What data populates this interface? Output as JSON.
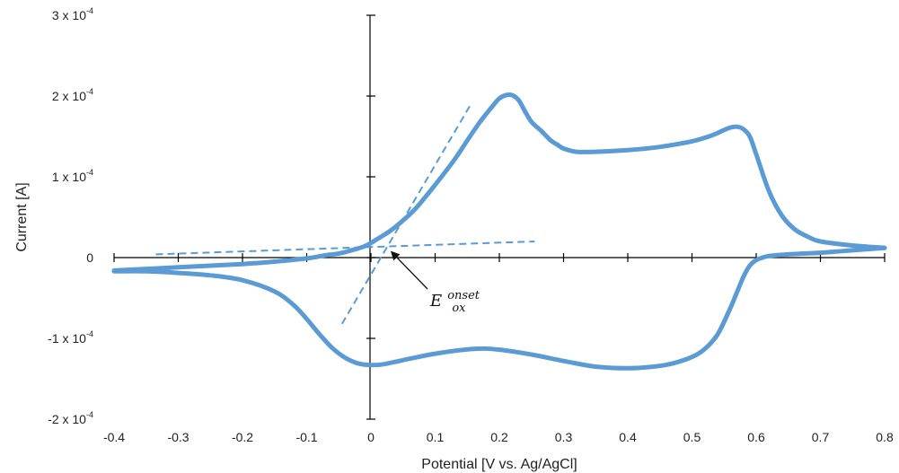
{
  "chart_data": {
    "type": "line",
    "xlabel": "Potential [V vs. Ag/AgCl]",
    "ylabel": "Current [A]",
    "xlim": [
      -0.4,
      0.8
    ],
    "ylim": [
      -0.0002,
      0.0003
    ],
    "x_ticks": [
      "-0.4",
      "-0.3",
      "-0.2",
      "-0.1",
      "0",
      "0.1",
      "0.2",
      "0.3",
      "0.4",
      "0.5",
      "0.6",
      "0.7",
      "0.8"
    ],
    "y_ticks": [
      {
        "value": 0.0003,
        "mantissa": "3 x 10",
        "exp": "-4"
      },
      {
        "value": 0.0002,
        "mantissa": "2 x 10",
        "exp": "-4"
      },
      {
        "value": 0.0001,
        "mantissa": "1 x 10",
        "exp": "-4"
      },
      {
        "value": 0,
        "mantissa": "0",
        "exp": ""
      },
      {
        "value": -0.0001,
        "mantissa": "-1 x 10",
        "exp": "-4"
      },
      {
        "value": -0.0002,
        "mantissa": "-2 x 10",
        "exp": "-4"
      }
    ],
    "grid": false,
    "line_color": "#5b9bd5",
    "series": [
      {
        "x": [
          -0.4,
          -0.35,
          -0.3,
          -0.25,
          -0.2,
          -0.15,
          -0.1,
          -0.07,
          -0.05,
          -0.03,
          -0.01,
          0.0,
          0.01,
          0.03,
          0.05,
          0.07,
          0.1,
          0.13,
          0.15,
          0.17,
          0.19,
          0.2,
          0.21,
          0.22,
          0.23,
          0.24,
          0.25,
          0.265,
          0.28,
          0.29,
          0.3,
          0.32,
          0.35,
          0.4,
          0.45,
          0.5,
          0.53,
          0.55,
          0.56,
          0.57,
          0.58,
          0.59,
          0.6,
          0.62,
          0.64,
          0.66,
          0.68,
          0.7,
          0.75,
          0.8
        ],
        "y": [
          -1.6e-05,
          -1.4e-05,
          -1.2e-05,
          -1e-05,
          -8e-06,
          -5e-06,
          -1e-06,
          3e-06,
          5e-06,
          9e-06,
          1.4e-05,
          1.8e-05,
          2.3e-05,
          3.3e-05,
          4.6e-05,
          6.1e-05,
          9e-05,
          0.000121,
          0.000145,
          0.000168,
          0.000188,
          0.000197,
          0.000201,
          0.000201,
          0.000195,
          0.000181,
          0.000168,
          0.000157,
          0.000145,
          0.00014,
          0.000135,
          0.000131,
          0.000131,
          0.000133,
          0.000137,
          0.000144,
          0.000151,
          0.000158,
          0.000161,
          0.000162,
          0.000159,
          0.00015,
          0.000128,
          8.2e-05,
          5.2e-05,
          3.5e-05,
          2.6e-05,
          2e-05,
          1.5e-05,
          1.2e-05
        ]
      },
      {
        "x": [
          0.8,
          0.75,
          0.7,
          0.65,
          0.62,
          0.61,
          0.6,
          0.59,
          0.58,
          0.56,
          0.54,
          0.52,
          0.5,
          0.47,
          0.44,
          0.4,
          0.35,
          0.3,
          0.25,
          0.2,
          0.16,
          0.1,
          0.05,
          0.02,
          0.0,
          -0.02,
          -0.04,
          -0.06,
          -0.08,
          -0.1,
          -0.12,
          -0.15,
          -0.2,
          -0.25,
          -0.3,
          -0.35,
          -0.4
        ],
        "y": [
          1.2e-05,
          9e-06,
          6e-06,
          4e-06,
          2e-06,
          0.0,
          -3e-06,
          -1e-05,
          -2.4e-05,
          -6.2e-05,
          -9.5e-05,
          -0.000113,
          -0.000123,
          -0.000131,
          -0.000135,
          -0.000137,
          -0.000135,
          -0.000128,
          -0.00012,
          -0.000114,
          -0.000113,
          -0.000119,
          -0.000127,
          -0.000132,
          -0.000133,
          -0.000131,
          -0.000124,
          -0.000112,
          -9.5e-05,
          -7.6e-05,
          -5.9e-05,
          -4.2e-05,
          -2.8e-05,
          -2.2e-05,
          -1.9e-05,
          -1.7e-05,
          -1.7e-05
        ]
      }
    ],
    "tangent_lines": [
      {
        "x": [
          -0.335,
          0.255
        ],
        "y": [
          4e-06,
          2e-05
        ],
        "style": "dashed"
      },
      {
        "x": [
          -0.045,
          0.155
        ],
        "y": [
          -8.2e-05,
          0.000189
        ],
        "style": "dashed"
      }
    ],
    "annotation": {
      "base": "E",
      "sup": "onset",
      "sub": "ox",
      "point_x": 0.027,
      "point_y": 1.1e-05
    }
  }
}
